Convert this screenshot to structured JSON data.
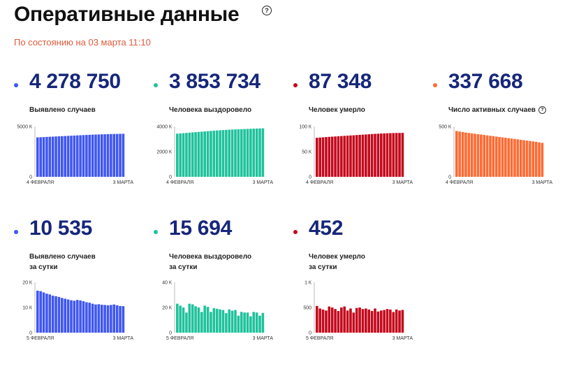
{
  "header": {
    "title": "Оперативные данные",
    "help_icon": "?",
    "as_of": "По состоянию на 03 марта 11:10"
  },
  "colors": {
    "blue": "#3f56f2",
    "teal": "#1fc29c",
    "red": "#c4081c",
    "orange": "#ff6a32",
    "value_text": "#16277a",
    "subtitle": "#e05a3a"
  },
  "cards": [
    {
      "value": "4 278 750",
      "label": "Выявлено случаев",
      "label2": "",
      "color": "#3f56f2"
    },
    {
      "value": "3 853 734",
      "label": "Человека выздоровело",
      "label2": "",
      "color": "#1fc29c"
    },
    {
      "value": "87 348",
      "label": "Человек умерло",
      "label2": "",
      "color": "#c4081c"
    },
    {
      "value": "337 668",
      "label": "Число активных случаев",
      "label2": "",
      "color": "#ff6a32",
      "help": "?"
    },
    {
      "value": "10 535",
      "label": "Выявлено случаев",
      "label2": "за сутки",
      "color": "#3f56f2"
    },
    {
      "value": "15 694",
      "label": "Человека выздоровело",
      "label2": "за сутки",
      "color": "#1fc29c"
    },
    {
      "value": "452",
      "label": "Человек умерло",
      "label2": "за сутки",
      "color": "#c4081c"
    }
  ],
  "chart_data": [
    {
      "type": "bar",
      "title": "",
      "x_start": "4 ФЕВРАЛЯ",
      "x_end": "3 МАРТА",
      "ylim": [
        0,
        5000000
      ],
      "yticks": [
        0,
        5000000
      ],
      "ytick_labels": [
        "0",
        "5000 К"
      ],
      "values": [
        3920000,
        3935000,
        3950000,
        3965000,
        3980000,
        3995000,
        4010000,
        4025000,
        4040000,
        4055000,
        4070000,
        4085000,
        4100000,
        4115000,
        4130000,
        4145000,
        4160000,
        4175000,
        4190000,
        4200000,
        4210000,
        4220000,
        4230000,
        4240000,
        4250000,
        4258000,
        4265000,
        4272000,
        4278750
      ]
    },
    {
      "type": "bar",
      "title": "",
      "x_start": "4 ФЕВРАЛЯ",
      "x_end": "3 МАРТА",
      "ylim": [
        0,
        4000000
      ],
      "yticks": [
        0,
        2000000,
        4000000
      ],
      "ytick_labels": [
        "0",
        "2000 К",
        "4000 К"
      ],
      "values": [
        3430000,
        3450000,
        3470000,
        3490000,
        3510000,
        3530000,
        3550000,
        3570000,
        3590000,
        3610000,
        3630000,
        3650000,
        3670000,
        3685000,
        3700000,
        3715000,
        3730000,
        3745000,
        3760000,
        3770000,
        3780000,
        3790000,
        3800000,
        3810000,
        3820000,
        3830000,
        3838000,
        3846000,
        3853734
      ]
    },
    {
      "type": "bar",
      "title": "",
      "x_start": "4 ФЕВРАЛЯ",
      "x_end": "3 МАРТА",
      "ylim": [
        0,
        100000
      ],
      "yticks": [
        0,
        50000,
        100000
      ],
      "ytick_labels": [
        "0",
        "50 К",
        "100 К"
      ],
      "values": [
        77500,
        78000,
        78500,
        79000,
        79400,
        79800,
        80200,
        80600,
        81000,
        81400,
        81800,
        82200,
        82600,
        83000,
        83400,
        83800,
        84200,
        84600,
        85000,
        85400,
        85700,
        86000,
        86300,
        86600,
        86800,
        87000,
        87150,
        87250,
        87348
      ]
    },
    {
      "type": "bar",
      "title": "",
      "x_start": "4 ФЕВРАЛЯ",
      "x_end": "3 МАРТА",
      "ylim": [
        0,
        500000
      ],
      "yticks": [
        0,
        500000
      ],
      "ytick_labels": [
        "0",
        "500 К"
      ],
      "values": [
        455000,
        450000,
        445000,
        440000,
        436000,
        432000,
        428000,
        424000,
        420000,
        416000,
        412000,
        408000,
        404000,
        400000,
        396000,
        392000,
        388000,
        384000,
        380000,
        376000,
        372000,
        368000,
        364000,
        360000,
        356000,
        352000,
        348000,
        342000,
        337668
      ]
    },
    {
      "type": "bar",
      "title": "",
      "x_start": "5 ФЕВРАЛЯ",
      "x_end": "3 МАРТА",
      "ylim": [
        0,
        20000
      ],
      "yticks": [
        0,
        10000,
        20000
      ],
      "ytick_labels": [
        "0",
        "10 К",
        "20 К"
      ],
      "values": [
        16700,
        16500,
        16000,
        15500,
        15200,
        14700,
        14500,
        14200,
        13800,
        13500,
        13200,
        12900,
        12700,
        13000,
        12800,
        12500,
        12100,
        11900,
        11500,
        11200,
        11300,
        11100,
        11000,
        10900,
        11000,
        11200,
        10900,
        10600,
        10535
      ]
    },
    {
      "type": "bar",
      "title": "",
      "x_start": "5 ФЕВРАЛЯ",
      "x_end": "3 МАРТА",
      "ylim": [
        0,
        40000
      ],
      "yticks": [
        0,
        20000,
        40000
      ],
      "ytick_labels": [
        "0",
        "20 К",
        "40 К"
      ],
      "values": [
        23000,
        21500,
        20000,
        16000,
        23000,
        22500,
        21000,
        20000,
        16500,
        21500,
        20500,
        16500,
        19500,
        19000,
        18500,
        18000,
        15500,
        18500,
        17500,
        18000,
        13500,
        16500,
        16000,
        16000,
        13000,
        16500,
        16000,
        13500,
        15694
      ]
    },
    {
      "type": "bar",
      "title": "",
      "x_start": "5 ФЕВРАЛЯ",
      "x_end": "3 МАРТА",
      "ylim": [
        0,
        1000
      ],
      "yticks": [
        0,
        500,
        1000
      ],
      "ytick_labels": [
        "0",
        "500",
        "1 К"
      ],
      "values": [
        530,
        480,
        460,
        440,
        520,
        500,
        470,
        430,
        500,
        520,
        440,
        480,
        400,
        490,
        500,
        470,
        480,
        460,
        430,
        480,
        420,
        440,
        450,
        470,
        460,
        410,
        460,
        440,
        452
      ]
    }
  ]
}
